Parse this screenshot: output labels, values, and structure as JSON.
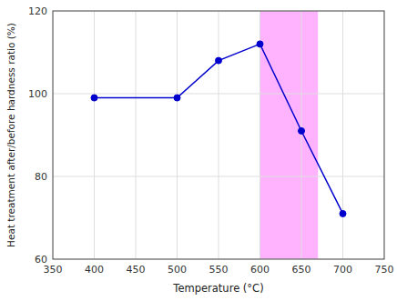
{
  "chart_data": {
    "type": "line",
    "x": [
      400,
      500,
      550,
      600,
      650,
      700
    ],
    "values": [
      99,
      99,
      108,
      112,
      91,
      71
    ],
    "color": "#0000CD",
    "marker": "circle",
    "xlabel": "Temperature (°C)",
    "ylabel": "Heat treatment after/before hardness ratio (%)",
    "xlim": [
      350,
      750
    ],
    "ylim": [
      60,
      120
    ],
    "xticks": [
      350,
      400,
      450,
      500,
      550,
      600,
      650,
      700,
      750
    ],
    "yticks": [
      60,
      80,
      100,
      120
    ],
    "grid": true,
    "shade": {
      "from": 600,
      "to": 670,
      "color": "#FF80FF"
    }
  }
}
